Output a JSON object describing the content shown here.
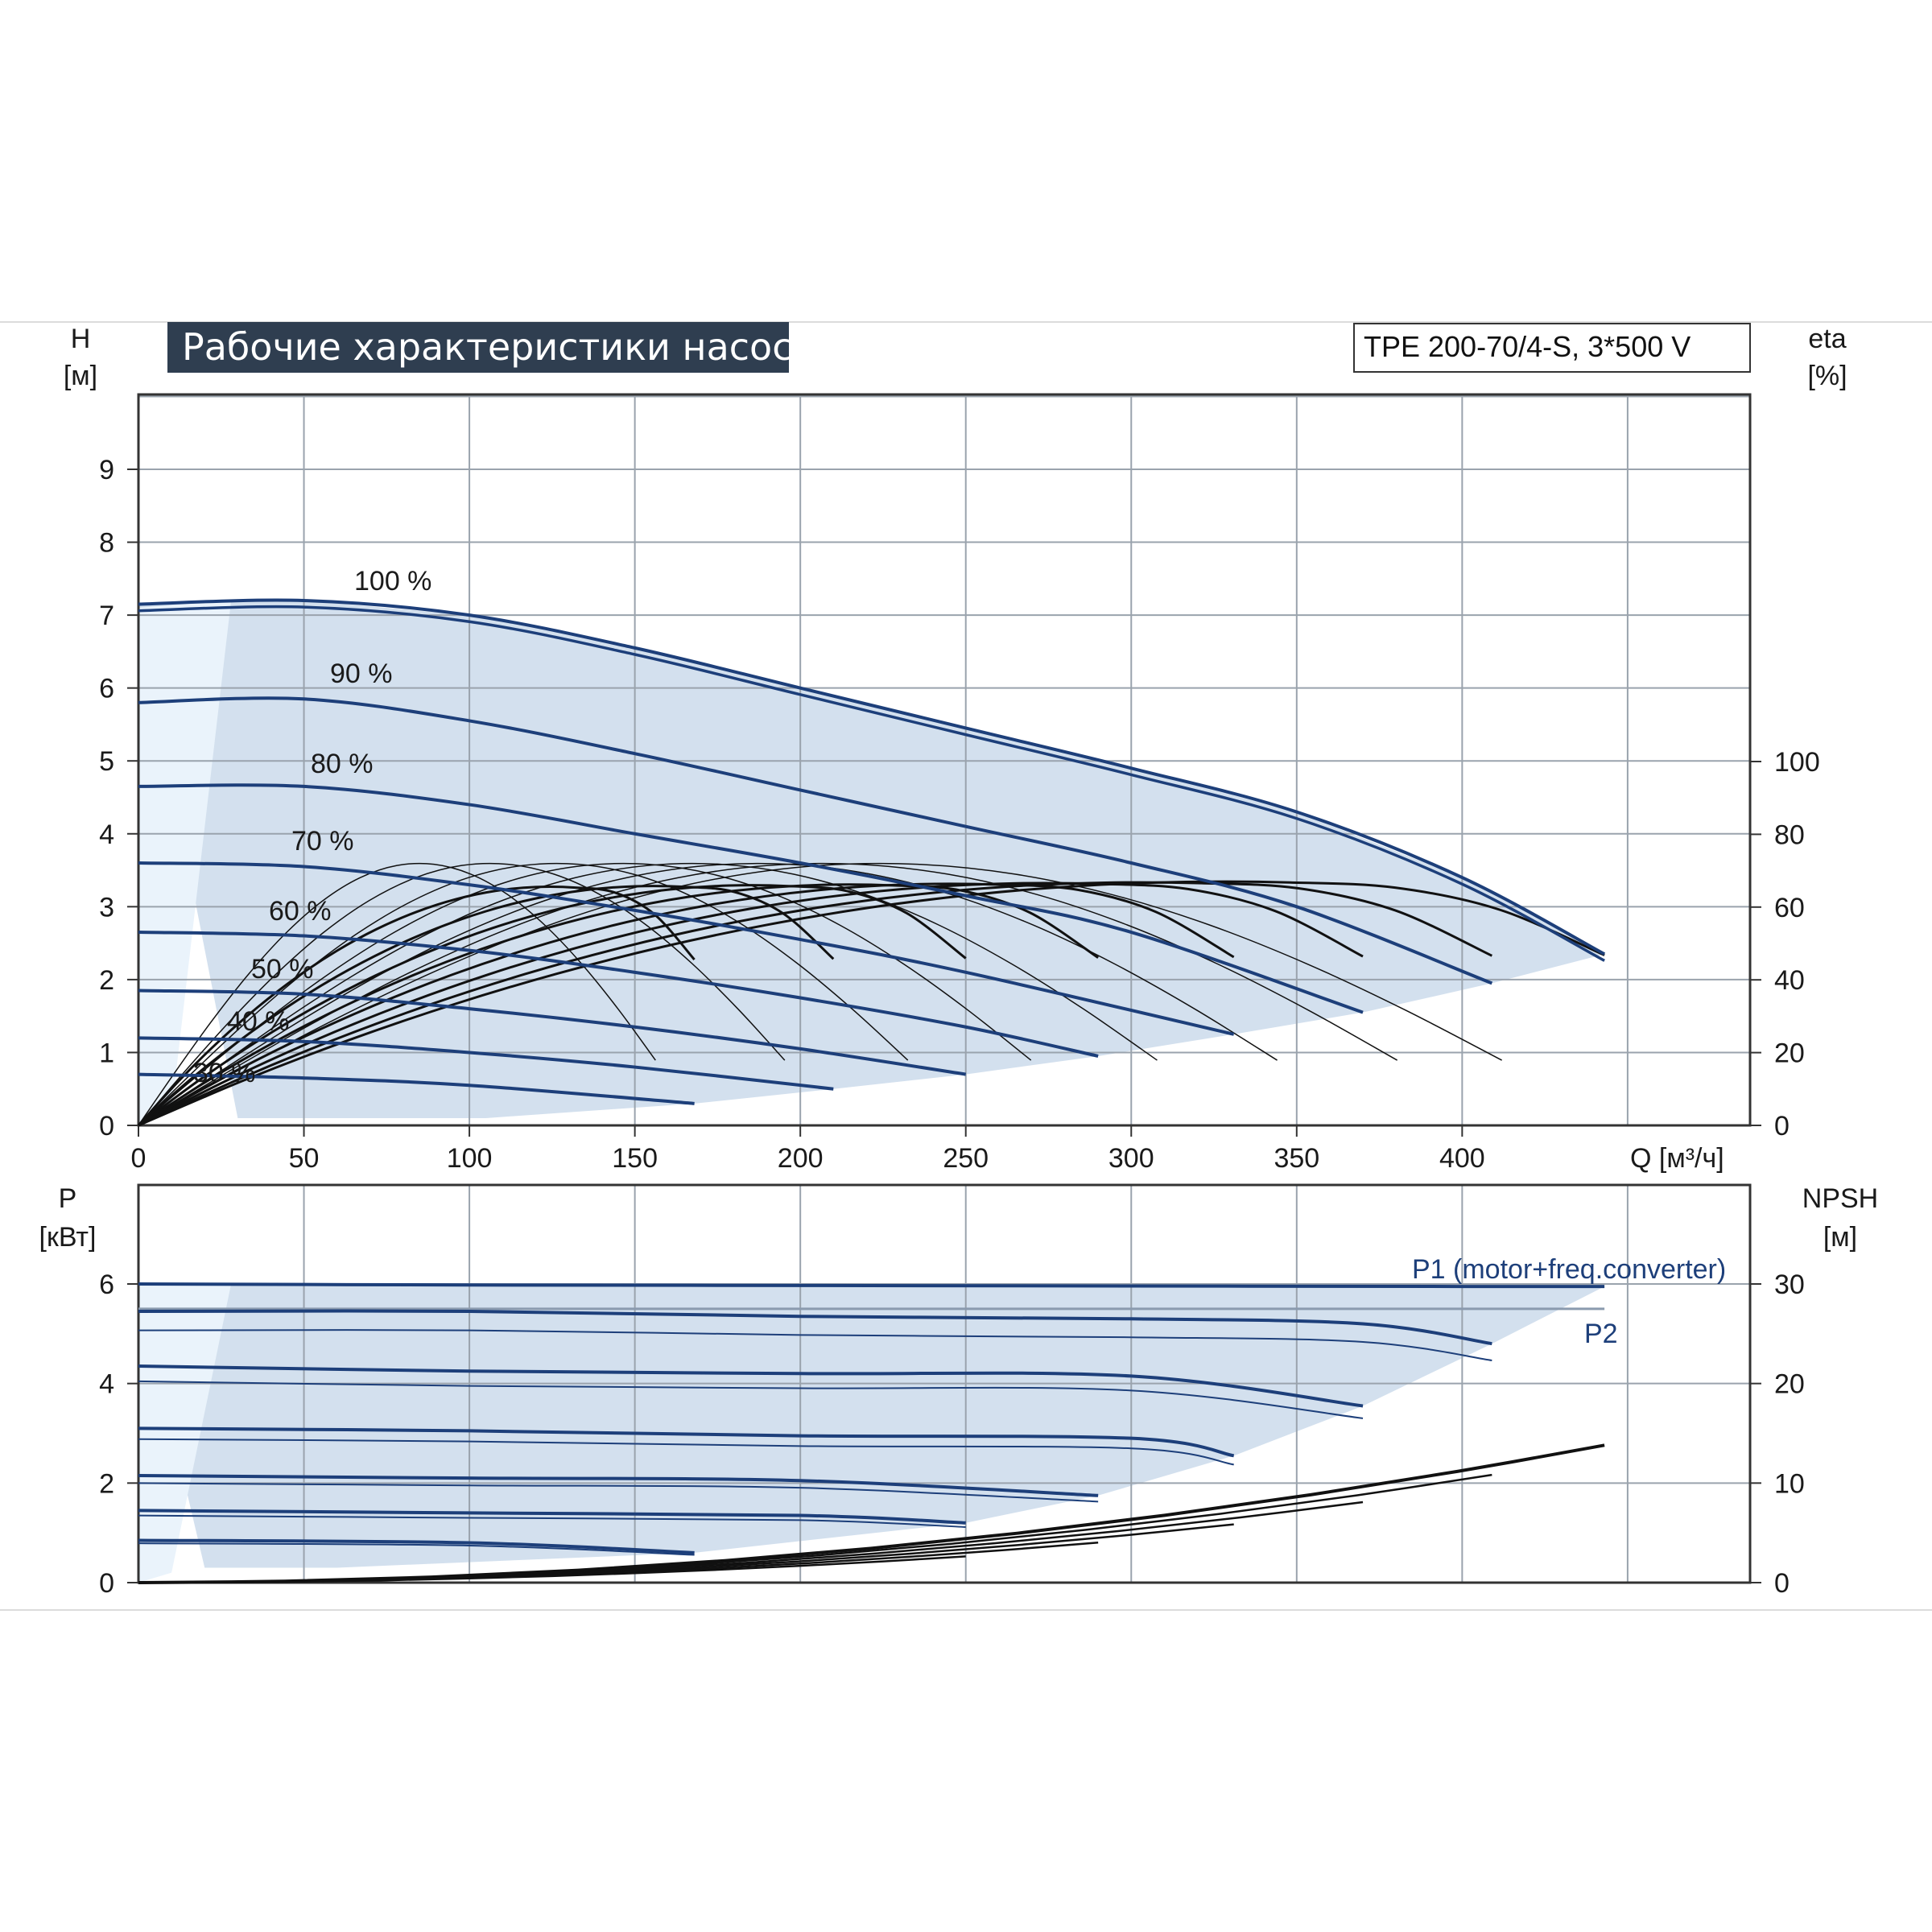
{
  "title": "Рабочие характеристики насоса",
  "model": "TPE 200-70/4-S, 3*500 V",
  "top_axes": {
    "y_left_label": "H",
    "y_left_unit": "[м]",
    "y_right_label": "eta",
    "y_right_unit": "[%]",
    "x_label": "Q [м³/ч]",
    "y_left_ticks": [
      "0",
      "1",
      "2",
      "3",
      "4",
      "5",
      "6",
      "7",
      "8",
      "9"
    ],
    "y_right_ticks": [
      "0",
      "20",
      "40",
      "60",
      "80",
      "100"
    ],
    "x_ticks": [
      "0",
      "50",
      "100",
      "150",
      "200",
      "250",
      "300",
      "350",
      "400"
    ]
  },
  "bottom_axes": {
    "y_left_label": "P",
    "y_left_unit": "[кВт]",
    "y_right_label": "NPSH",
    "y_right_unit": "[м]",
    "y_left_ticks": [
      "0",
      "2",
      "4",
      "6"
    ],
    "y_right_ticks": [
      "0",
      "10",
      "20",
      "30"
    ]
  },
  "speed_labels": [
    "100 %",
    "90 %",
    "80 %",
    "70 %",
    "60 %",
    "50 %",
    "40 %",
    "30 %"
  ],
  "power_labels": {
    "p1": "P1 (motor+freq.converter)",
    "p2": "P2"
  },
  "colors": {
    "curve_blue": "#1d3f7a",
    "area_fill": "#d3e0ee",
    "area_fill_light": "#eaf3fb",
    "eta_black": "#111111",
    "title_bg": "#2f3e50"
  },
  "chart_data": [
    {
      "type": "line",
      "title": "Рабочие характеристики насоса",
      "xlabel": "Q [м³/ч]",
      "ylabel": "H [м]",
      "y2label": "eta [%]",
      "xlim": [
        0,
        450
      ],
      "ylim": [
        0,
        10
      ],
      "y2lim": [
        0,
        150
      ],
      "grid": true,
      "series": [
        {
          "name": "100 %",
          "kind": "head",
          "x": [
            0,
            50,
            100,
            150,
            200,
            250,
            300,
            350,
            400,
            443
          ],
          "values": [
            7.15,
            7.2,
            7.0,
            6.55,
            6.0,
            5.45,
            4.9,
            4.3,
            3.4,
            2.35
          ]
        },
        {
          "name": "90 %",
          "kind": "head",
          "x": [
            0,
            50,
            100,
            150,
            200,
            250,
            300,
            350,
            409
          ],
          "values": [
            5.8,
            5.85,
            5.55,
            5.1,
            4.6,
            4.1,
            3.6,
            3.0,
            1.95
          ]
        },
        {
          "name": "80 %",
          "kind": "head",
          "x": [
            0,
            50,
            100,
            150,
            200,
            250,
            300,
            370
          ],
          "values": [
            4.65,
            4.65,
            4.4,
            4.0,
            3.6,
            3.15,
            2.65,
            1.55
          ]
        },
        {
          "name": "70 %",
          "kind": "head",
          "x": [
            0,
            50,
            100,
            150,
            200,
            250,
            331
          ],
          "values": [
            3.6,
            3.55,
            3.3,
            2.95,
            2.55,
            2.1,
            1.25
          ]
        },
        {
          "name": "60 %",
          "kind": "head",
          "x": [
            0,
            50,
            100,
            150,
            200,
            250,
            290
          ],
          "values": [
            2.65,
            2.6,
            2.4,
            2.1,
            1.75,
            1.35,
            0.95
          ]
        },
        {
          "name": "50 %",
          "kind": "head",
          "x": [
            0,
            50,
            100,
            150,
            200,
            250
          ],
          "values": [
            1.85,
            1.8,
            1.6,
            1.35,
            1.05,
            0.7
          ]
        },
        {
          "name": "40 %",
          "kind": "head",
          "x": [
            0,
            50,
            100,
            150,
            210
          ],
          "values": [
            1.2,
            1.15,
            1.0,
            0.8,
            0.5
          ]
        },
        {
          "name": "30 %",
          "kind": "head",
          "x": [
            0,
            50,
            100,
            168
          ],
          "values": [
            0.7,
            0.65,
            0.55,
            0.3
          ]
        },
        {
          "name": "eta",
          "kind": "efficiency",
          "x": [
            0,
            50,
            100,
            150,
            200,
            250,
            300,
            350,
            400,
            443
          ],
          "values": [
            0,
            23,
            40,
            52,
            59,
            64,
            67,
            67,
            60,
            46
          ]
        }
      ]
    },
    {
      "type": "line",
      "xlabel": "Q [м³/ч]",
      "ylabel": "P [кВт]",
      "y2label": "NPSH [м]",
      "xlim": [
        0,
        450
      ],
      "ylim": [
        0,
        8
      ],
      "y2lim": [
        0,
        40
      ],
      "grid": true,
      "series": [
        {
          "name": "P1 (motor+freq.converter)",
          "kind": "power",
          "x": [
            0,
            100,
            200,
            300,
            400,
            443
          ],
          "values": [
            6.0,
            5.98,
            5.97,
            5.96,
            5.95,
            5.95
          ]
        },
        {
          "name": "P2",
          "kind": "power",
          "x": [
            0,
            100,
            200,
            300,
            400,
            443
          ],
          "values": [
            5.5,
            5.5,
            5.5,
            5.5,
            5.5,
            5.5
          ]
        },
        {
          "name": "",
          "kind": "power",
          "x": [
            0,
            100,
            200,
            300,
            370,
            409
          ],
          "values": [
            5.45,
            5.45,
            5.35,
            5.3,
            5.2,
            4.8
          ]
        },
        {
          "name": "",
          "kind": "power",
          "x": [
            0,
            100,
            200,
            300,
            370
          ],
          "values": [
            4.35,
            4.25,
            4.2,
            4.15,
            3.55
          ]
        },
        {
          "name": "",
          "kind": "power",
          "x": [
            0,
            100,
            200,
            300,
            331
          ],
          "values": [
            3.1,
            3.05,
            2.95,
            2.9,
            2.55
          ]
        },
        {
          "name": "",
          "kind": "power",
          "x": [
            0,
            100,
            200,
            290
          ],
          "values": [
            2.15,
            2.1,
            2.05,
            1.75
          ]
        },
        {
          "name": "",
          "kind": "power",
          "x": [
            0,
            100,
            200,
            250
          ],
          "values": [
            1.45,
            1.4,
            1.35,
            1.2
          ]
        },
        {
          "name": "",
          "kind": "power",
          "x": [
            0,
            100,
            168
          ],
          "values": [
            0.85,
            0.8,
            0.6
          ]
        },
        {
          "name": "NPSH",
          "kind": "npsh",
          "x": [
            0,
            100,
            200,
            300,
            400,
            443
          ],
          "values": [
            0,
            1.5,
            4.0,
            7.5,
            11.8,
            13.8
          ]
        }
      ]
    }
  ]
}
